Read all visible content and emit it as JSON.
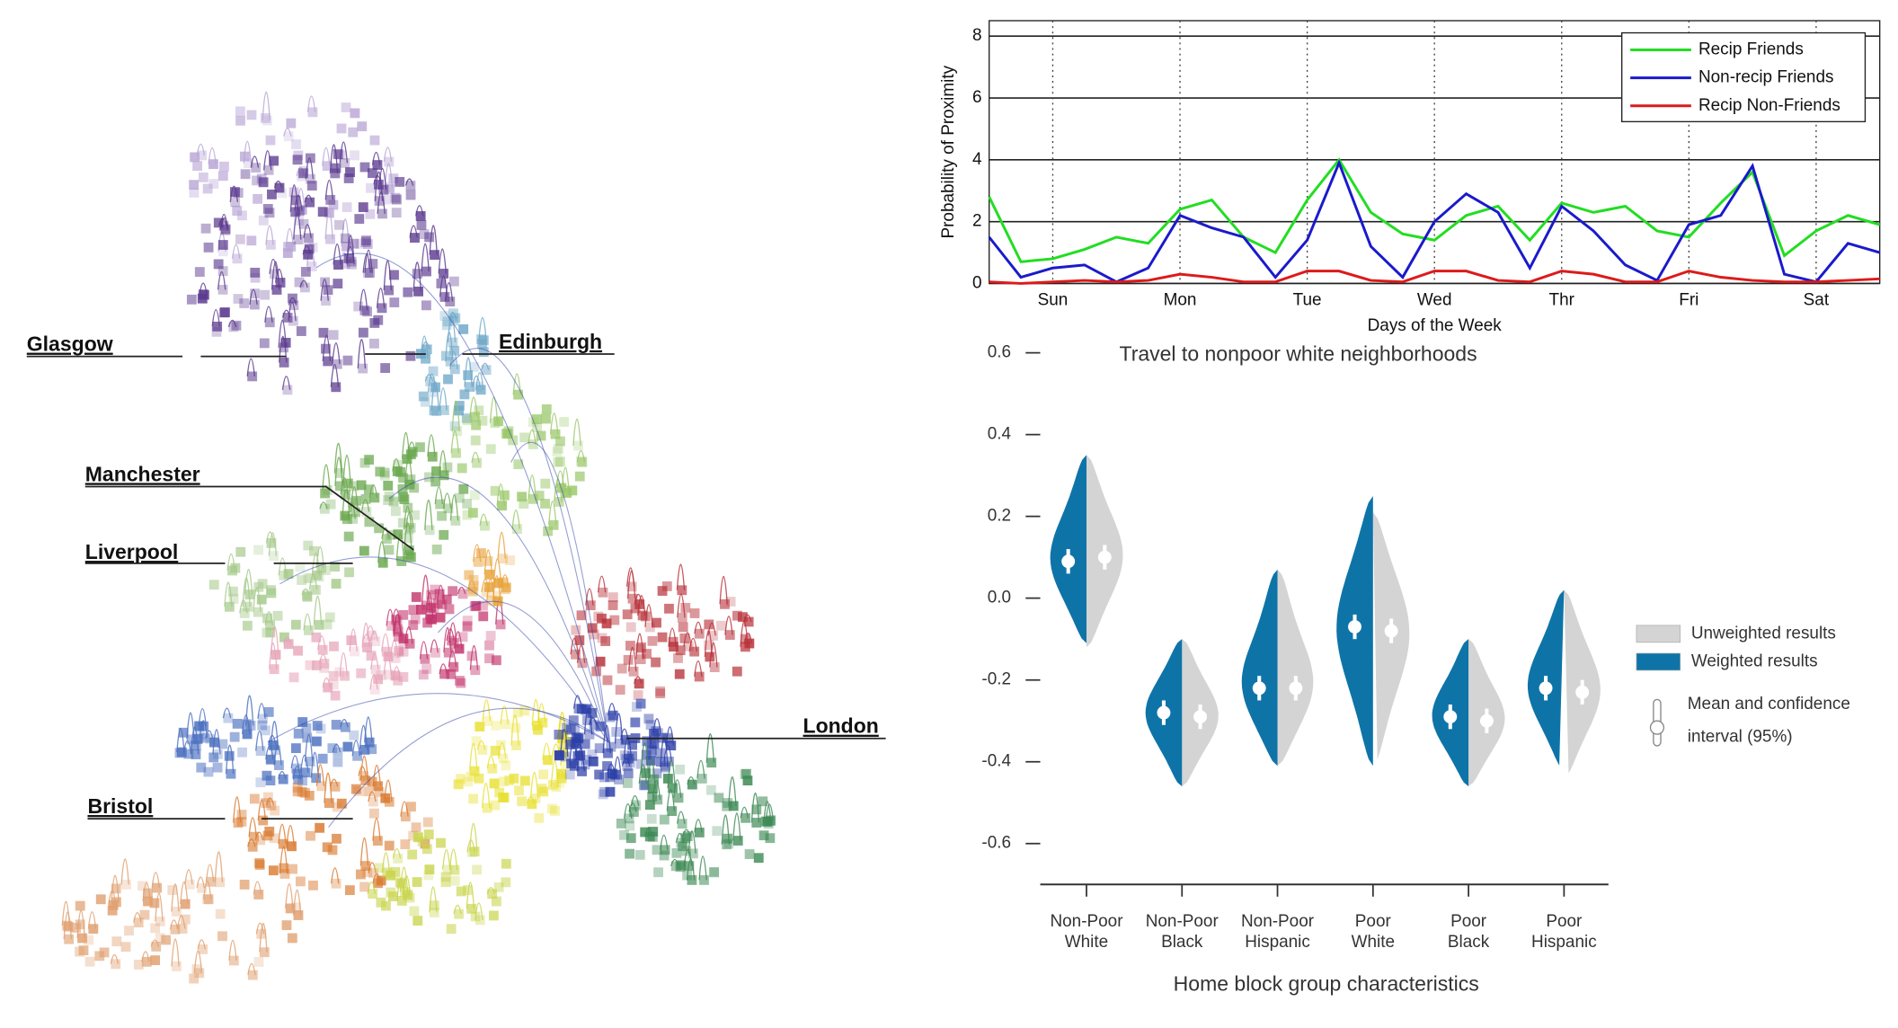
{
  "map": {
    "cities": [
      "Glasgow",
      "Edinburgh",
      "Manchester",
      "Liverpool",
      "London",
      "Bristol"
    ]
  },
  "chart_data": [
    {
      "type": "line",
      "ylabel": "Probability of Proximity",
      "xlabel": "Days of the Week",
      "x": [
        0,
        0.25,
        0.5,
        0.75,
        1,
        1.25,
        1.5,
        1.75,
        2,
        2.25,
        2.5,
        2.75,
        3,
        3.25,
        3.5,
        3.75,
        4,
        4.25,
        4.5,
        4.75,
        5,
        5.25,
        5.5,
        5.75,
        6,
        6.25,
        6.5,
        6.75,
        7
      ],
      "xlim": [
        0,
        7
      ],
      "xticks": [
        {
          "value": 0.5,
          "label": "Sun"
        },
        {
          "value": 1.5,
          "label": "Mon"
        },
        {
          "value": 2.5,
          "label": "Tue"
        },
        {
          "value": 3.5,
          "label": "Wed"
        },
        {
          "value": 4.5,
          "label": "Thr"
        },
        {
          "value": 5.5,
          "label": "Fri"
        },
        {
          "value": 6.5,
          "label": "Sat"
        }
      ],
      "ylim": [
        0,
        8.5
      ],
      "yticks": [
        0,
        2,
        4,
        6,
        8
      ],
      "grid": true,
      "legend": "upper right",
      "series": [
        {
          "name": "Recip Friends",
          "color": "#22dd22",
          "values": [
            2.8,
            0.7,
            0.8,
            1.1,
            1.5,
            1.3,
            2.4,
            2.7,
            1.5,
            1.0,
            2.7,
            4.0,
            2.3,
            1.6,
            1.4,
            2.2,
            2.5,
            1.4,
            2.6,
            2.3,
            2.5,
            1.7,
            1.5,
            2.6,
            3.6,
            0.9,
            1.7,
            2.2,
            1.9
          ]
        },
        {
          "name": "Non-recip Friends",
          "color": "#1a1acc",
          "values": [
            1.5,
            0.2,
            0.5,
            0.6,
            0.05,
            0.5,
            2.2,
            1.8,
            1.5,
            0.2,
            1.4,
            3.9,
            1.2,
            0.2,
            2.0,
            2.9,
            2.3,
            0.5,
            2.5,
            1.7,
            0.6,
            0.1,
            1.9,
            2.2,
            3.8,
            0.3,
            0.05,
            1.3,
            1.0
          ]
        },
        {
          "name": "Recip Non-Friends",
          "color": "#dd1a1a",
          "values": [
            0.05,
            0,
            0.05,
            0.1,
            0.05,
            0.1,
            0.3,
            0.2,
            0.05,
            0.05,
            0.4,
            0.4,
            0.1,
            0.05,
            0.4,
            0.4,
            0.1,
            0.05,
            0.4,
            0.3,
            0.05,
            0.05,
            0.4,
            0.2,
            0.1,
            0.05,
            0.05,
            0.1,
            0.15
          ]
        }
      ]
    },
    {
      "type": "violin",
      "title": "Travel to nonpoor white neighborhoods",
      "xlabel": "Home block group characteristics",
      "categories": [
        "Non-Poor White",
        "Non-Poor Black",
        "Non-Poor Hispanic",
        "Poor White",
        "Poor Black",
        "Poor Hispanic"
      ],
      "ylim": [
        -0.7,
        0.6
      ],
      "yticks": [
        0.6,
        0.4,
        0.2,
        {
          "value": 0,
          "label": "0.0"
        },
        -0.2,
        -0.4,
        -0.6
      ],
      "series": [
        {
          "name": "Unweighted results",
          "color": "#d4d4d4",
          "values": [
            0.1,
            -0.29,
            -0.22,
            -0.08,
            -0.3,
            -0.23
          ],
          "ci_low": [
            0.07,
            -0.32,
            -0.25,
            -0.11,
            -0.33,
            -0.26
          ],
          "ci_high": [
            0.13,
            -0.26,
            -0.19,
            -0.05,
            -0.27,
            -0.2
          ],
          "min": [
            -0.12,
            -0.46,
            -0.41,
            -0.41,
            -0.46,
            -0.44
          ],
          "max": [
            0.35,
            -0.1,
            0.07,
            0.21,
            -0.1,
            0.02
          ]
        },
        {
          "name": "Weighted results",
          "color": "#0e74a8",
          "values": [
            0.09,
            -0.28,
            -0.22,
            -0.07,
            -0.29,
            -0.22
          ],
          "ci_low": [
            0.06,
            -0.31,
            -0.25,
            -0.1,
            -0.32,
            -0.25
          ],
          "ci_high": [
            0.12,
            -0.25,
            -0.19,
            -0.04,
            -0.26,
            -0.19
          ],
          "min": [
            -0.11,
            -0.46,
            -0.41,
            -0.41,
            -0.46,
            -0.42
          ],
          "max": [
            0.35,
            -0.1,
            0.07,
            0.25,
            -0.1,
            0.02
          ]
        }
      ],
      "legend_note": [
        "Mean and confidence",
        "interval (95%)"
      ]
    }
  ]
}
